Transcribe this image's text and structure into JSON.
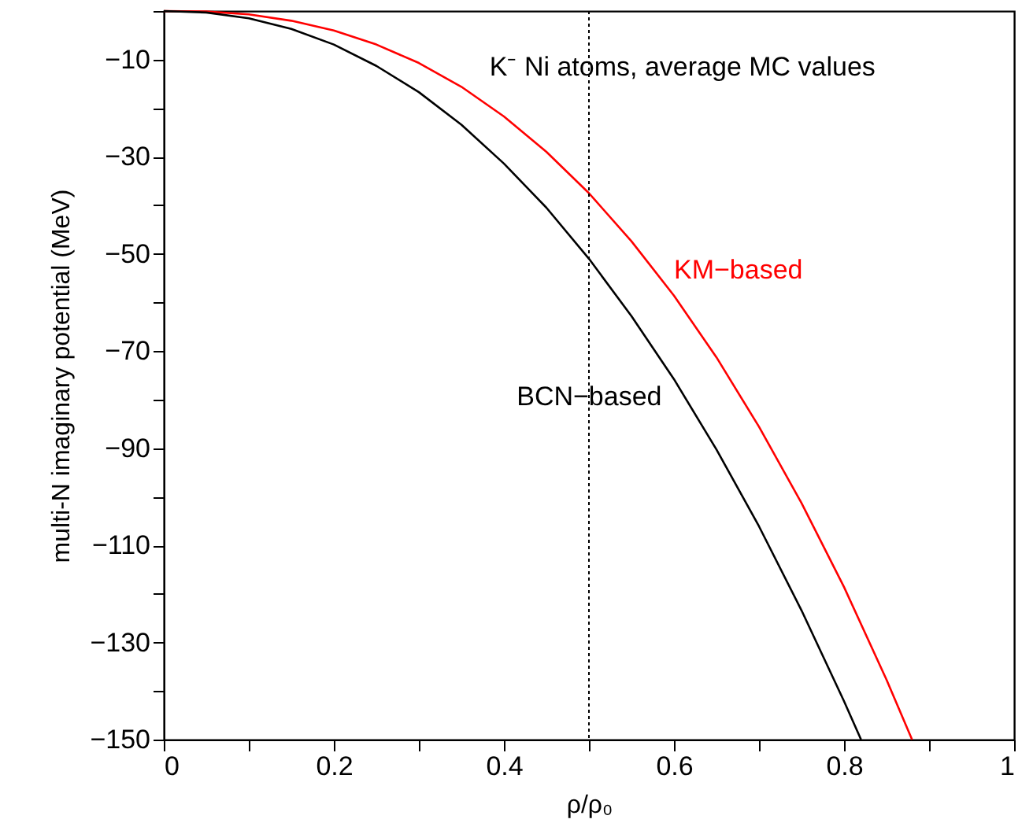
{
  "chart_data": {
    "type": "line",
    "xlabel": "ρ/ρ₀",
    "ylabel": "multi-N imaginary potential (MeV)",
    "annotations": [
      "K⁻ Ni atoms, average MC values"
    ],
    "series": [
      {
        "name": "KM−based",
        "color": "#ff0000",
        "x": [
          0,
          0.05,
          0.1,
          0.15,
          0.2,
          0.25,
          0.3,
          0.35,
          0.4,
          0.45,
          0.5,
          0.55,
          0.6,
          0.65,
          0.7,
          0.75,
          0.8,
          0.85,
          0.88
        ],
        "values": [
          0,
          -0.1,
          -0.7,
          -2.0,
          -4.0,
          -6.9,
          -10.7,
          -15.6,
          -21.7,
          -29.0,
          -37.5,
          -47.4,
          -58.6,
          -71.3,
          -85.6,
          -101.3,
          -118.6,
          -137.7,
          -150
        ]
      },
      {
        "name": "BCN−based",
        "color": "#000000",
        "x": [
          0,
          0.05,
          0.1,
          0.15,
          0.2,
          0.25,
          0.3,
          0.35,
          0.4,
          0.45,
          0.5,
          0.55,
          0.6,
          0.65,
          0.7,
          0.75,
          0.8,
          0.82
        ],
        "values": [
          0,
          -0.3,
          -1.5,
          -3.7,
          -6.9,
          -11.3,
          -16.7,
          -23.4,
          -31.4,
          -40.5,
          -51.0,
          -62.8,
          -75.8,
          -90.3,
          -106.1,
          -123.4,
          -142.1,
          -150
        ]
      }
    ],
    "xlim": [
      0,
      1
    ],
    "ylim": [
      -150,
      0
    ],
    "xticks": [
      0,
      {
        "value": 0.1,
        "label": null
      },
      0.2,
      {
        "value": 0.3,
        "label": null
      },
      0.4,
      {
        "value": 0.5,
        "label": null
      },
      0.6,
      {
        "value": 0.7,
        "label": null
      },
      0.8,
      {
        "value": 0.9,
        "label": null
      },
      1
    ],
    "yticks": [
      {
        "value": 0,
        "label": null
      },
      -10,
      {
        "value": -20,
        "label": null
      },
      -30,
      {
        "value": -40,
        "label": null
      },
      -50,
      {
        "value": -60,
        "label": null
      },
      -70,
      {
        "value": -80,
        "label": null
      },
      -90,
      {
        "value": -100,
        "label": null
      },
      -110,
      {
        "value": -120,
        "label": null
      },
      -130,
      {
        "value": -140,
        "label": null
      },
      -150
    ],
    "ref_lines": [
      {
        "axis": "x",
        "value": 0.5,
        "line_style": "dotted",
        "color": "#000000"
      }
    ],
    "grid": false,
    "marker": "none",
    "line_style": "solid"
  }
}
